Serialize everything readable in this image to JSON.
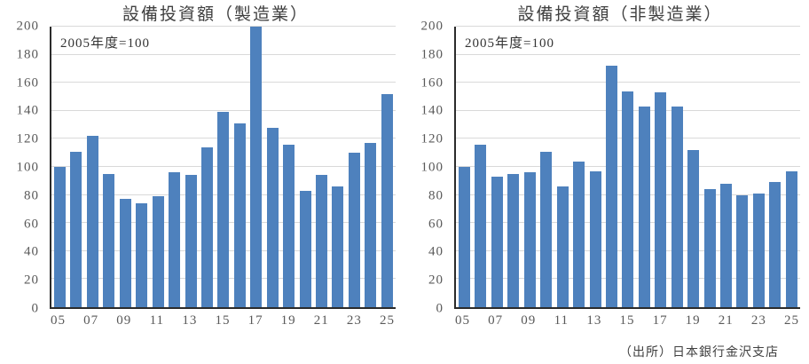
{
  "source_note": "（出所）日本銀行金沢支店",
  "colors": {
    "bar": "#4e81bd",
    "gridline": "#d9d9d9",
    "axis_line": "#2b2b2b",
    "tick_text": "#595959",
    "title_text": "#404040"
  },
  "chart_data": [
    {
      "type": "bar",
      "title": "設備投資額（製造業）",
      "annotation": "2005年度=100",
      "categories": [
        "05",
        "06",
        "07",
        "08",
        "09",
        "10",
        "11",
        "12",
        "13",
        "14",
        "15",
        "16",
        "17",
        "18",
        "19",
        "20",
        "21",
        "22",
        "23",
        "24",
        "25"
      ],
      "values": [
        100,
        111,
        122,
        95,
        77,
        74,
        79,
        96,
        94,
        114,
        139,
        131,
        200,
        128,
        116,
        83,
        94,
        86,
        110,
        117,
        152
      ],
      "xtick_labels": [
        "05",
        "07",
        "09",
        "11",
        "13",
        "15",
        "17",
        "19",
        "21",
        "23",
        "25"
      ],
      "xtick_every": 2,
      "ylabel": "",
      "xlabel": "",
      "ylim": [
        0,
        200
      ],
      "ytick_step": 20,
      "grid": true,
      "legend": "none"
    },
    {
      "type": "bar",
      "title": "設備投資額（非製造業）",
      "annotation": "2005年度=100",
      "categories": [
        "05",
        "06",
        "07",
        "08",
        "09",
        "10",
        "11",
        "12",
        "13",
        "14",
        "15",
        "16",
        "17",
        "18",
        "19",
        "20",
        "21",
        "22",
        "23",
        "24",
        "25"
      ],
      "values": [
        100,
        116,
        93,
        95,
        96,
        111,
        86,
        104,
        97,
        172,
        154,
        143,
        153,
        143,
        112,
        84,
        88,
        80,
        81,
        89,
        97
      ],
      "xtick_labels": [
        "05",
        "07",
        "09",
        "11",
        "13",
        "15",
        "17",
        "19",
        "21",
        "23",
        "25"
      ],
      "xtick_every": 2,
      "ylabel": "",
      "xlabel": "",
      "ylim": [
        0,
        200
      ],
      "ytick_step": 20,
      "grid": true,
      "legend": "none"
    }
  ]
}
